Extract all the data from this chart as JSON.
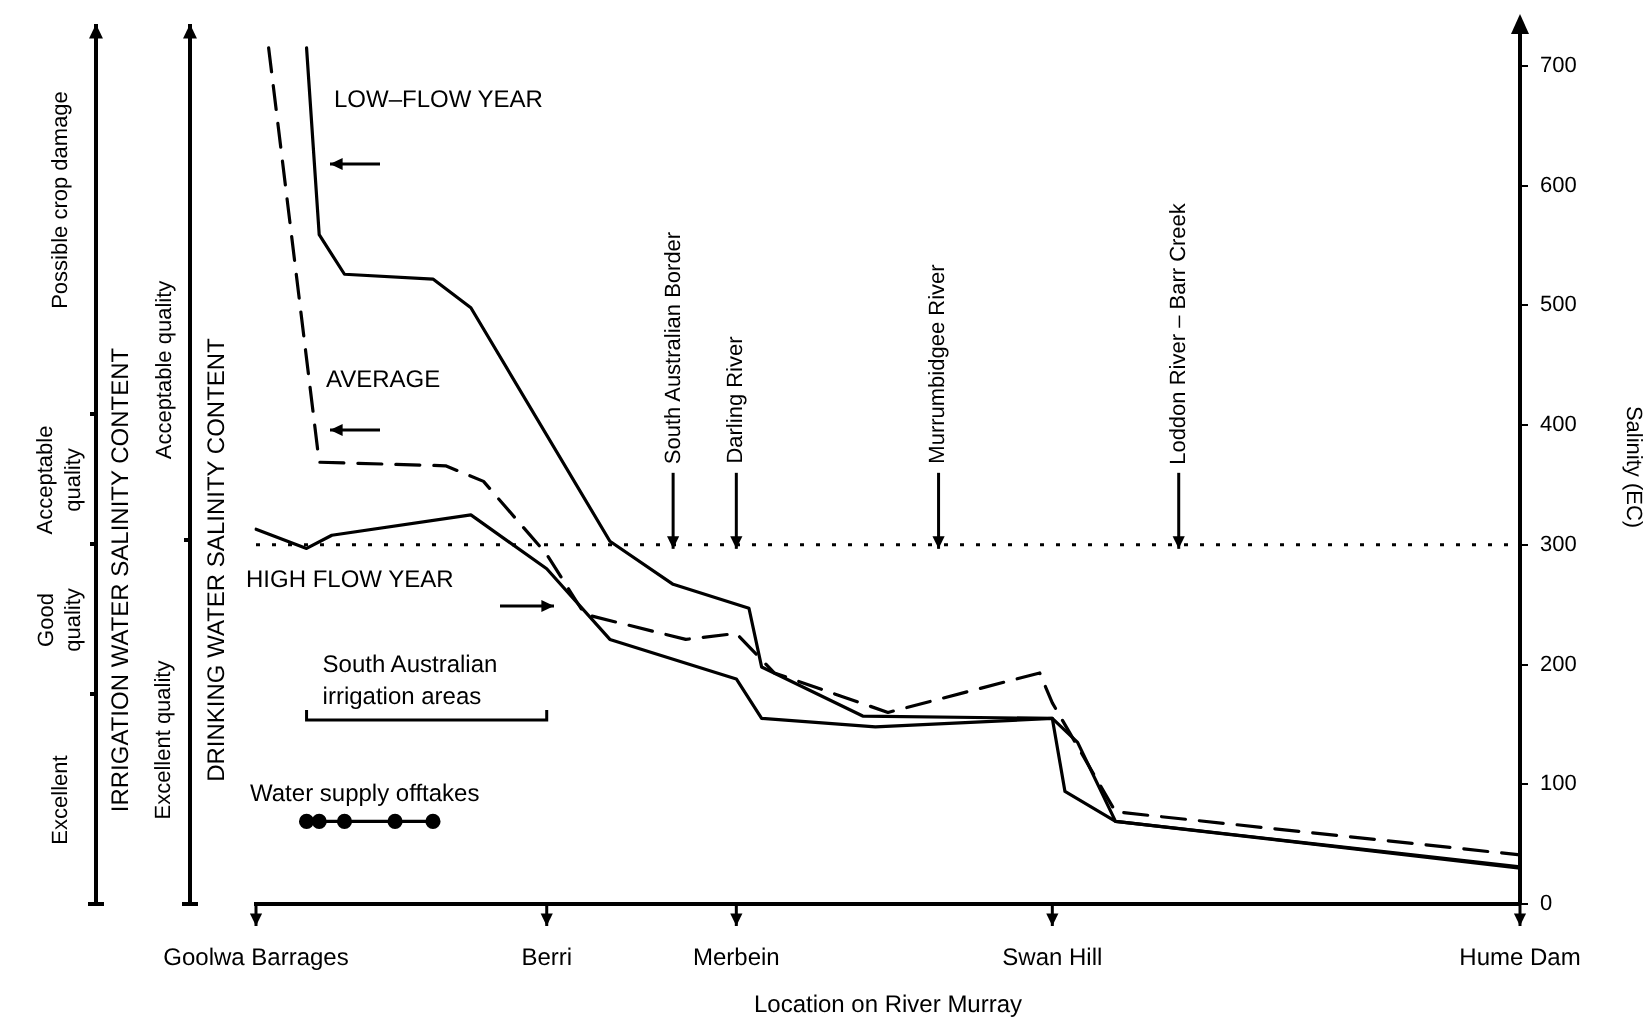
{
  "chart_data": {
    "type": "line",
    "xlabel": "Location on River Murray",
    "ylabel": "Salinity (EC)",
    "categories": [
      "Goolwa Barrages",
      null,
      null,
      null,
      null,
      null,
      null,
      null,
      null,
      null,
      null,
      null,
      null,
      null,
      null,
      null,
      null,
      null,
      null,
      null,
      null,
      null,
      null,
      "Berri",
      null,
      null,
      null,
      null,
      null,
      null,
      null,
      null,
      null,
      null,
      null,
      null,
      null,
      null,
      "Merbein",
      null,
      null,
      null,
      null,
      null,
      null,
      null,
      null,
      null,
      null,
      null,
      null,
      null,
      null,
      null,
      null,
      null,
      null,
      null,
      null,
      null,
      null,
      null,
      null,
      "Swan Hill",
      null,
      null,
      null,
      null,
      null,
      null,
      null,
      null,
      null,
      null,
      null,
      null,
      null,
      null,
      null,
      null,
      null,
      null,
      null,
      null,
      null,
      null,
      null,
      null,
      null,
      null,
      null,
      null,
      null,
      null,
      null,
      null,
      null,
      null,
      null,
      null,
      "Hume Dam"
    ],
    "ylim": [
      0,
      730
    ],
    "yticks": [
      0,
      100,
      200,
      300,
      400,
      500,
      600,
      700
    ],
    "grid": false,
    "legend": false,
    "marker": "none",
    "series": [
      {
        "name": "LOW–FLOW YEAR",
        "color": "#000000",
        "line_style": "solid",
        "values": [
          null,
          null,
          null,
          null,
          715,
          559,
          null,
          526,
          null,
          null,
          null,
          null,
          null,
          null,
          522,
          null,
          null,
          498,
          null,
          null,
          null,
          null,
          null,
          null,
          null,
          null,
          null,
          null,
          303,
          null,
          null,
          null,
          null,
          267,
          null,
          null,
          null,
          null,
          null,
          247,
          198,
          null,
          null,
          null,
          null,
          null,
          null,
          null,
          157,
          null,
          null,
          null,
          null,
          null,
          null,
          null,
          null,
          null,
          null,
          null,
          null,
          null,
          null,
          155,
          null,
          135,
          null,
          null,
          69,
          null,
          null,
          null,
          null,
          null,
          null,
          null,
          null,
          null,
          null,
          null,
          null,
          null,
          null,
          null,
          null,
          null,
          null,
          null,
          null,
          null,
          null,
          null,
          null,
          null,
          null,
          null,
          null,
          null,
          null,
          null,
          31
        ]
      },
      {
        "name": "AVERAGE",
        "color": "#000000",
        "line_style": "dashed",
        "values": [
          null,
          715,
          null,
          null,
          null,
          369,
          null,
          null,
          null,
          null,
          null,
          null,
          null,
          null,
          null,
          366,
          null,
          null,
          353,
          null,
          null,
          null,
          null,
          292,
          null,
          null,
          242,
          null,
          null,
          null,
          null,
          null,
          null,
          null,
          221,
          null,
          null,
          null,
          226,
          null,
          null,
          193,
          null,
          null,
          null,
          null,
          null,
          null,
          null,
          null,
          160,
          null,
          null,
          null,
          null,
          null,
          null,
          null,
          null,
          null,
          null,
          null,
          193,
          168,
          null,
          null,
          null,
          null,
          77,
          null,
          null,
          null,
          null,
          null,
          null,
          null,
          null,
          null,
          null,
          null,
          null,
          null,
          null,
          null,
          null,
          null,
          null,
          null,
          null,
          null,
          null,
          null,
          null,
          null,
          null,
          null,
          null,
          null,
          null,
          null,
          41
        ]
      },
      {
        "name": "HIGH FLOW YEAR",
        "color": "#000000",
        "line_style": "solid",
        "values": [
          313,
          null,
          null,
          null,
          297,
          null,
          308,
          null,
          null,
          null,
          null,
          null,
          null,
          null,
          null,
          null,
          null,
          325,
          null,
          null,
          null,
          null,
          null,
          280,
          null,
          null,
          null,
          null,
          221,
          null,
          null,
          null,
          null,
          null,
          null,
          null,
          null,
          null,
          188,
          null,
          155,
          null,
          null,
          null,
          null,
          null,
          null,
          null,
          null,
          148,
          null,
          null,
          null,
          null,
          null,
          null,
          null,
          null,
          null,
          null,
          null,
          null,
          null,
          155,
          94,
          null,
          null,
          null,
          69,
          null,
          null,
          null,
          null,
          null,
          null,
          null,
          null,
          null,
          null,
          null,
          null,
          null,
          null,
          null,
          null,
          null,
          null,
          null,
          null,
          null,
          null,
          null,
          null,
          null,
          null,
          null,
          null,
          null,
          null,
          null,
          30
        ]
      },
      {
        "name": "Water supply offtakes",
        "color": "#000000",
        "line_style": "solid",
        "marker": "circle",
        "values": [
          null,
          null,
          null,
          null,
          69,
          69,
          null,
          69,
          null,
          null,
          null,
          69,
          null,
          null,
          69,
          null,
          null,
          null,
          null,
          null,
          null,
          null,
          null,
          null,
          null,
          null,
          null,
          null,
          null,
          null,
          null,
          null,
          null,
          null,
          null,
          null,
          null,
          null,
          null,
          null,
          null,
          null,
          null,
          null,
          null,
          null,
          null,
          null,
          null,
          null,
          null,
          null,
          null,
          null,
          null,
          null,
          null,
          null,
          null,
          null,
          null,
          null,
          null,
          null,
          null,
          null,
          null,
          null,
          null,
          null,
          null,
          null,
          null,
          null,
          null,
          null,
          null,
          null,
          null,
          null,
          null,
          null,
          null,
          null,
          null,
          null,
          null,
          null,
          null,
          null,
          null,
          null,
          null,
          null,
          null,
          null,
          null,
          null,
          null,
          null,
          null
        ]
      }
    ],
    "ref_lines": [
      {
        "axis": "y",
        "value": 300,
        "line_style": "dotted"
      }
    ],
    "annotations": [
      "Possible crop damage",
      "Acceptable quality",
      "Good quality",
      "Excellent",
      "IRRIGATION WATER SALINITY CONTENT",
      "Acceptable quality",
      "Excellent quality",
      "DRINKING WATER SALINITY CONTENT",
      "South Australian irrigation areas",
      {
        "text": "South Australian Border",
        "y": 300
      },
      {
        "text": "Darling River",
        "y": 300
      },
      {
        "text": "Murrumbidgee River",
        "y": 300
      },
      {
        "text": "Loddon River – Barr Creek",
        "y": 300
      }
    ]
  }
}
